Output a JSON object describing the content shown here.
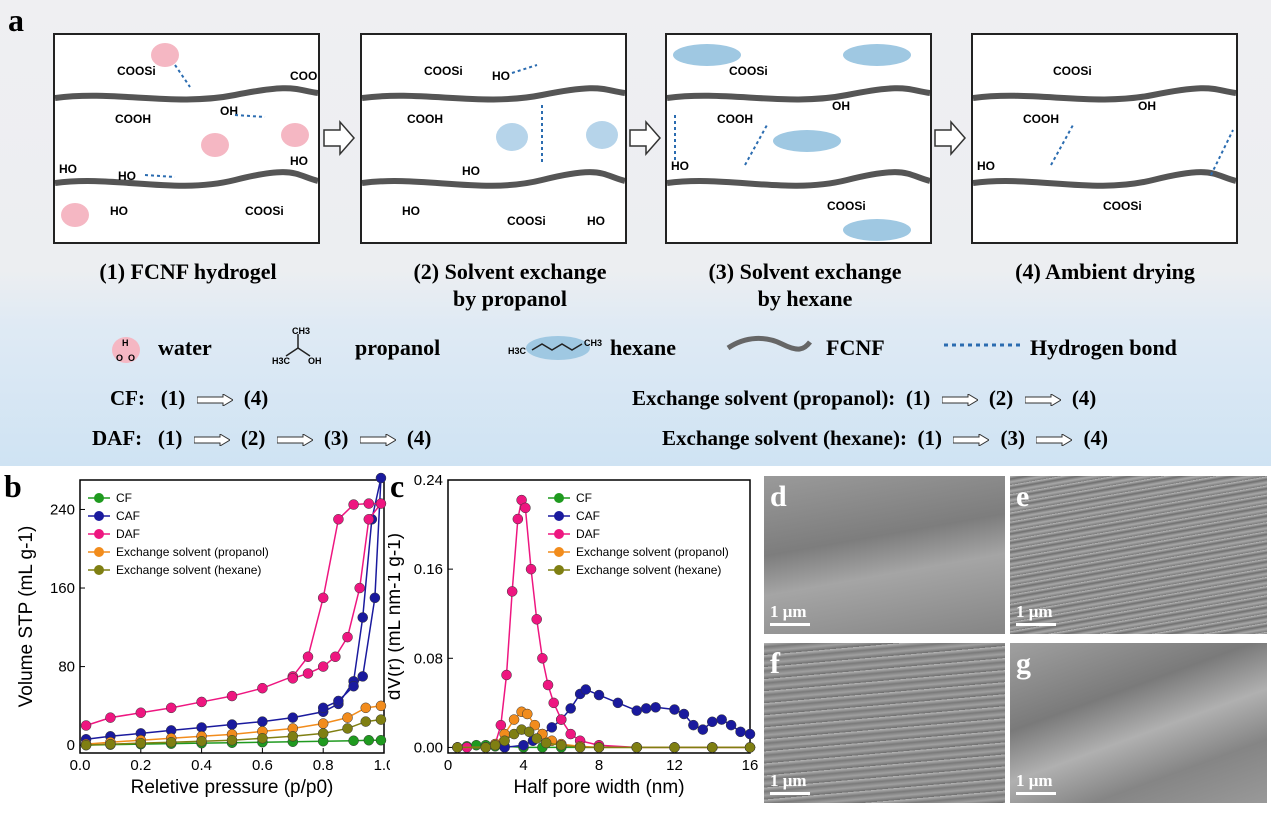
{
  "panel_a": {
    "label": "a",
    "stages": [
      {
        "title_line1": "(1)  FCNF hydrogel",
        "title_line2": ""
      },
      {
        "title_line1": "(2)  Solvent exchange",
        "title_line2": "by propanol"
      },
      {
        "title_line1": "(3) Solvent exchange",
        "title_line2": "by hexane"
      },
      {
        "title_line1": "(4)  Ambient drying",
        "title_line2": ""
      }
    ],
    "legend": {
      "water": "water",
      "propanol": "propanol",
      "hexane": "hexane",
      "fcnf": "FCNF",
      "hbond": "Hydrogen bond"
    },
    "sequences": [
      {
        "name": "CF:",
        "steps": [
          "(1)",
          "(4)"
        ]
      },
      {
        "name": "DAF:",
        "steps": [
          "(1)",
          "(2)",
          "(3)",
          "(4)"
        ]
      },
      {
        "name": "Exchange solvent (propanol):",
        "steps": [
          "(1)",
          "(2)",
          "(4)"
        ]
      },
      {
        "name": "Exchange solvent (hexane):",
        "steps": [
          "(1)",
          "(3)",
          "(4)"
        ]
      }
    ],
    "chem_labels": {
      "cooh": "COOH",
      "oh": "OH",
      "ho": "HO",
      "coosi": "COOSi",
      "coo": "COO",
      "h": "H"
    }
  },
  "chart_data": [
    {
      "panel": "b",
      "type": "line",
      "title": "",
      "xlabel": "Reletive pressure (p/p0)",
      "ylabel": "Volume STP (mL g-1)",
      "xlim": [
        0.0,
        1.0
      ],
      "ylim": [
        -8,
        270
      ],
      "xticks": [
        "0.0",
        "0.2",
        "0.4",
        "0.6",
        "0.8",
        "1.0"
      ],
      "yticks": [
        "0",
        "80",
        "160",
        "240"
      ],
      "legend_position": "top-left",
      "series": [
        {
          "name": "CF",
          "color": "#1f9a1f",
          "points": [
            [
              0.02,
              0
            ],
            [
              0.1,
              0.5
            ],
            [
              0.2,
              1
            ],
            [
              0.3,
              1.5
            ],
            [
              0.4,
              2
            ],
            [
              0.5,
              2.5
            ],
            [
              0.6,
              3
            ],
            [
              0.7,
              3.5
            ],
            [
              0.8,
              4
            ],
            [
              0.9,
              4.5
            ],
            [
              0.95,
              5
            ],
            [
              0.99,
              5
            ]
          ]
        },
        {
          "name": "CAF",
          "color": "#1a1a9e",
          "points": [
            [
              0.02,
              6
            ],
            [
              0.1,
              9
            ],
            [
              0.2,
              12
            ],
            [
              0.3,
              15
            ],
            [
              0.4,
              18
            ],
            [
              0.5,
              21
            ],
            [
              0.6,
              24
            ],
            [
              0.7,
              28
            ],
            [
              0.8,
              34
            ],
            [
              0.85,
              42
            ],
            [
              0.9,
              65
            ],
            [
              0.93,
              130
            ],
            [
              0.96,
              230
            ],
            [
              0.99,
              272
            ],
            [
              0.97,
              150
            ],
            [
              0.93,
              70
            ],
            [
              0.9,
              60
            ],
            [
              0.85,
              45
            ],
            [
              0.8,
              38
            ]
          ]
        },
        {
          "name": "DAF",
          "color": "#ee1680",
          "points": [
            [
              0.02,
              20
            ],
            [
              0.1,
              28
            ],
            [
              0.2,
              33
            ],
            [
              0.3,
              38
            ],
            [
              0.4,
              44
            ],
            [
              0.5,
              50
            ],
            [
              0.6,
              58
            ],
            [
              0.7,
              70
            ],
            [
              0.75,
              90
            ],
            [
              0.8,
              150
            ],
            [
              0.85,
              230
            ],
            [
              0.9,
              245
            ],
            [
              0.95,
              246
            ],
            [
              0.99,
              246
            ],
            [
              0.95,
              230
            ],
            [
              0.92,
              160
            ],
            [
              0.88,
              110
            ],
            [
              0.84,
              90
            ],
            [
              0.8,
              80
            ],
            [
              0.75,
              73
            ],
            [
              0.7,
              68
            ]
          ]
        },
        {
          "name": "Exchange solvent (propanol)",
          "color": "#f28c1c",
          "points": [
            [
              0.02,
              1
            ],
            [
              0.1,
              3
            ],
            [
              0.2,
              5
            ],
            [
              0.3,
              7
            ],
            [
              0.4,
              9
            ],
            [
              0.5,
              11
            ],
            [
              0.6,
              14
            ],
            [
              0.7,
              17
            ],
            [
              0.8,
              22
            ],
            [
              0.88,
              28
            ],
            [
              0.94,
              38
            ],
            [
              0.99,
              40
            ]
          ]
        },
        {
          "name": "Exchange solvent (hexane)",
          "color": "#7f7f12",
          "points": [
            [
              0.02,
              0
            ],
            [
              0.1,
              1
            ],
            [
              0.2,
              2
            ],
            [
              0.3,
              3
            ],
            [
              0.4,
              4
            ],
            [
              0.5,
              5
            ],
            [
              0.6,
              7
            ],
            [
              0.7,
              9
            ],
            [
              0.8,
              12
            ],
            [
              0.88,
              17
            ],
            [
              0.94,
              24
            ],
            [
              0.99,
              26
            ]
          ]
        }
      ]
    },
    {
      "panel": "c",
      "type": "line",
      "title": "",
      "xlabel": "Half pore width (nm)",
      "ylabel": "dV(r) (mL nm-1 g-1)",
      "xlim": [
        0,
        16
      ],
      "ylim": [
        -0.005,
        0.24
      ],
      "xticks": [
        "0",
        "4",
        "8",
        "12",
        "16"
      ],
      "yticks": [
        "0.00",
        "0.08",
        "0.16",
        "0.24"
      ],
      "legend_position": "top-right",
      "series": [
        {
          "name": "CF",
          "color": "#1f9a1f",
          "points": [
            [
              0.5,
              0
            ],
            [
              1,
              0.001
            ],
            [
              1.5,
              0.002
            ],
            [
              2,
              0.002
            ],
            [
              2.5,
              0.001
            ],
            [
              3,
              0.001
            ],
            [
              4,
              0
            ],
            [
              5,
              0
            ],
            [
              6,
              0
            ],
            [
              8,
              0
            ],
            [
              10,
              0
            ],
            [
              12,
              0
            ],
            [
              14,
              0
            ],
            [
              16,
              0
            ]
          ]
        },
        {
          "name": "CAF",
          "color": "#1a1a9e",
          "points": [
            [
              0.5,
              0
            ],
            [
              2,
              0
            ],
            [
              3,
              0
            ],
            [
              4,
              0.002
            ],
            [
              4.5,
              0.006
            ],
            [
              5,
              0.012
            ],
            [
              5.5,
              0.018
            ],
            [
              6,
              0.025
            ],
            [
              6.5,
              0.035
            ],
            [
              7,
              0.048
            ],
            [
              7.3,
              0.052
            ],
            [
              8,
              0.047
            ],
            [
              9,
              0.04
            ],
            [
              10,
              0.033
            ],
            [
              10.5,
              0.035
            ],
            [
              11,
              0.036
            ],
            [
              12,
              0.034
            ],
            [
              12.5,
              0.03
            ],
            [
              13,
              0.02
            ],
            [
              13.5,
              0.016
            ],
            [
              14,
              0.023
            ],
            [
              14.5,
              0.025
            ],
            [
              15,
              0.02
            ],
            [
              15.5,
              0.014
            ],
            [
              16,
              0.012
            ]
          ]
        },
        {
          "name": "DAF",
          "color": "#ee1680",
          "points": [
            [
              0.5,
              0
            ],
            [
              1,
              0
            ],
            [
              2,
              0
            ],
            [
              2.5,
              0.003
            ],
            [
              2.8,
              0.02
            ],
            [
              3.1,
              0.065
            ],
            [
              3.4,
              0.14
            ],
            [
              3.7,
              0.205
            ],
            [
              3.9,
              0.222
            ],
            [
              4.1,
              0.215
            ],
            [
              4.4,
              0.16
            ],
            [
              4.7,
              0.115
            ],
            [
              5,
              0.08
            ],
            [
              5.3,
              0.056
            ],
            [
              5.6,
              0.04
            ],
            [
              6,
              0.025
            ],
            [
              6.5,
              0.012
            ],
            [
              7,
              0.006
            ],
            [
              8,
              0.002
            ],
            [
              10,
              0
            ],
            [
              12,
              0
            ],
            [
              14,
              0
            ],
            [
              16,
              0
            ]
          ]
        },
        {
          "name": "Exchange solvent (propanol)",
          "color": "#f28c1c",
          "points": [
            [
              0.5,
              0
            ],
            [
              2,
              0
            ],
            [
              2.5,
              0.003
            ],
            [
              3,
              0.012
            ],
            [
              3.5,
              0.025
            ],
            [
              3.9,
              0.032
            ],
            [
              4.2,
              0.03
            ],
            [
              4.6,
              0.02
            ],
            [
              5,
              0.012
            ],
            [
              5.5,
              0.006
            ],
            [
              6,
              0.003
            ],
            [
              7,
              0.001
            ],
            [
              8,
              0
            ],
            [
              10,
              0
            ],
            [
              12,
              0
            ],
            [
              14,
              0
            ],
            [
              16,
              0
            ]
          ]
        },
        {
          "name": "Exchange solvent (hexane)",
          "color": "#7f7f12",
          "points": [
            [
              0.5,
              0
            ],
            [
              2,
              0
            ],
            [
              2.5,
              0.002
            ],
            [
              3,
              0.006
            ],
            [
              3.5,
              0.012
            ],
            [
              3.9,
              0.016
            ],
            [
              4.3,
              0.014
            ],
            [
              4.7,
              0.008
            ],
            [
              5.2,
              0.004
            ],
            [
              6,
              0.002
            ],
            [
              7,
              0
            ],
            [
              8,
              0
            ],
            [
              10,
              0
            ],
            [
              12,
              0
            ],
            [
              14,
              0
            ],
            [
              16,
              0
            ]
          ]
        }
      ]
    }
  ],
  "sem_panels": [
    {
      "label": "d",
      "scale": "1 μm"
    },
    {
      "label": "e",
      "scale": "1 μm"
    },
    {
      "label": "f",
      "scale": "1 μm"
    },
    {
      "label": "g",
      "scale": "1 μm"
    }
  ]
}
